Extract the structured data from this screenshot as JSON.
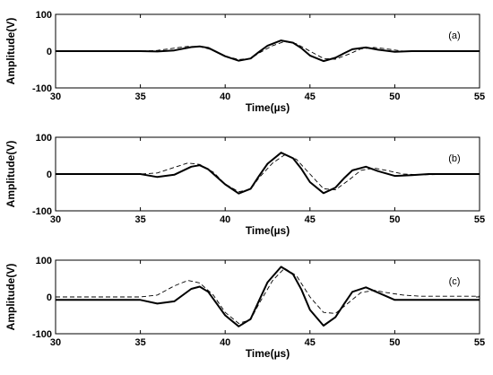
{
  "chart_data": [
    {
      "type": "line",
      "panel_label": "(a)",
      "xlabel": "Time(µs)",
      "ylabel": "Amplitude(V)",
      "xlim": [
        30,
        55
      ],
      "ylim": [
        -100,
        100
      ],
      "xticks": [
        "30",
        "35",
        "40",
        "45",
        "50",
        "55"
      ],
      "yticks": [
        "100",
        "0",
        "-100"
      ],
      "series": [
        {
          "style": "solid",
          "x": [
            30,
            34,
            35,
            36,
            37,
            38,
            38.5,
            39,
            40,
            40.8,
            41.5,
            42,
            42.5,
            43.3,
            44,
            44.5,
            45,
            45.8,
            46.5,
            47,
            47.5,
            48.3,
            49,
            50,
            51,
            52,
            55
          ],
          "y": [
            0,
            0,
            0,
            -1,
            2,
            11,
            13,
            9,
            -14,
            -26,
            -20,
            -2,
            15,
            29,
            23,
            8,
            -12,
            -27,
            -18,
            -6,
            5,
            10,
            4,
            -2,
            0,
            0,
            0
          ]
        },
        {
          "style": "dashed",
          "x": [
            30,
            34,
            35,
            36,
            37,
            37.8,
            38.5,
            39.3,
            40,
            40.8,
            41.5,
            42,
            42.8,
            43.5,
            44.2,
            45,
            45.8,
            46.5,
            47.3,
            48,
            48.8,
            49.5,
            50.5,
            51.5,
            55
          ],
          "y": [
            0,
            0,
            0,
            2,
            8,
            13,
            12,
            3,
            -13,
            -23,
            -20,
            -5,
            15,
            26,
            20,
            0,
            -20,
            -22,
            -8,
            6,
            10,
            6,
            0,
            -1,
            0
          ]
        }
      ]
    },
    {
      "type": "line",
      "panel_label": "(b)",
      "xlabel": "Time(µs)",
      "ylabel": "Amplitude(V)",
      "xlim": [
        30,
        55
      ],
      "ylim": [
        -100,
        100
      ],
      "xticks": [
        "30",
        "35",
        "40",
        "45",
        "50",
        "55"
      ],
      "yticks": [
        "100",
        "0",
        "-100"
      ],
      "series": [
        {
          "style": "solid",
          "x": [
            30,
            34,
            35,
            36,
            37,
            38,
            38.5,
            39,
            40,
            40.8,
            41.5,
            42,
            42.5,
            43.3,
            44,
            44.5,
            45,
            45.8,
            46.5,
            47,
            47.5,
            48.3,
            49,
            50,
            51,
            52,
            55
          ],
          "y": [
            0,
            0,
            0,
            -8,
            -2,
            20,
            24,
            13,
            -28,
            -53,
            -40,
            -5,
            28,
            58,
            43,
            14,
            -22,
            -52,
            -37,
            -12,
            10,
            20,
            8,
            -5,
            -3,
            0,
            0
          ]
        },
        {
          "style": "dashed",
          "x": [
            30,
            34,
            35,
            36,
            37,
            37.8,
            38.5,
            39.3,
            40,
            40.8,
            41.5,
            42,
            42.8,
            43.5,
            44.2,
            45,
            45.8,
            46.5,
            47.3,
            48,
            48.8,
            49.5,
            50.5,
            51.5,
            55
          ],
          "y": [
            0,
            0,
            0,
            3,
            18,
            30,
            26,
            5,
            -27,
            -48,
            -42,
            -10,
            30,
            52,
            40,
            0,
            -40,
            -43,
            -16,
            10,
            16,
            10,
            0,
            -2,
            0
          ]
        }
      ]
    },
    {
      "type": "line",
      "panel_label": "(c)",
      "xlabel": "Time(µs)",
      "ylabel": "Amplitude(V)",
      "xlim": [
        30,
        55
      ],
      "ylim": [
        -100,
        100
      ],
      "xticks": [
        "30",
        "35",
        "40",
        "45",
        "50",
        "55"
      ],
      "yticks": [
        "100",
        "0",
        "-100"
      ],
      "series": [
        {
          "style": "solid",
          "x": [
            30,
            34,
            35,
            36,
            37,
            38,
            38.5,
            39,
            40,
            40.8,
            41.5,
            42,
            42.5,
            43.3,
            44,
            44.5,
            45,
            45.8,
            46.5,
            47,
            47.5,
            48.3,
            49,
            50,
            51,
            52,
            55
          ],
          "y": [
            -8,
            -8,
            -8,
            -18,
            -12,
            22,
            28,
            14,
            -50,
            -80,
            -60,
            -10,
            40,
            82,
            62,
            20,
            -35,
            -78,
            -55,
            -20,
            14,
            26,
            12,
            -8,
            -8,
            -8,
            -8
          ]
        },
        {
          "style": "dashed",
          "x": [
            30,
            34,
            35,
            36,
            37,
            37.8,
            38.5,
            39.3,
            40,
            40.8,
            41.5,
            42,
            42.8,
            43.5,
            44.2,
            45,
            45.8,
            46.5,
            47.3,
            48,
            48.8,
            49.5,
            50.5,
            51.5,
            55
          ],
          "y": [
            0,
            0,
            0,
            5,
            30,
            45,
            38,
            5,
            -42,
            -72,
            -62,
            -18,
            45,
            78,
            58,
            0,
            -42,
            -45,
            -15,
            12,
            18,
            12,
            5,
            2,
            2
          ]
        }
      ]
    }
  ]
}
